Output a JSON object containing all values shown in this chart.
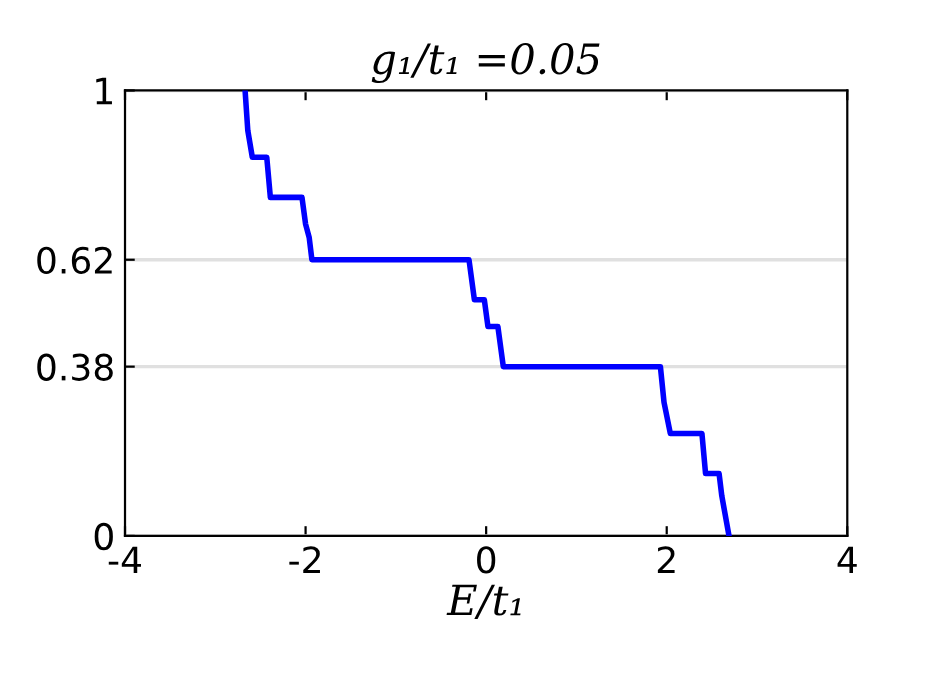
{
  "chart_data": {
    "type": "line",
    "title": "g₁/t₁ =0.05",
    "xlabel": "E/t₁",
    "series": [
      {
        "color": "#0000ff",
        "x": [
          -2.67,
          -2.64,
          -2.59,
          -2.43,
          -2.39,
          -2.04,
          -2.0,
          -1.96,
          -1.93,
          -0.19,
          -0.13,
          -0.02,
          0.02,
          0.13,
          0.19,
          1.93,
          1.97,
          2.04,
          2.39,
          2.43,
          2.58,
          2.61,
          2.69
        ],
        "values": [
          1,
          0.91,
          0.85,
          0.85,
          0.76,
          0.76,
          0.7,
          0.67,
          0.62,
          0.62,
          0.53,
          0.53,
          0.47,
          0.47,
          0.38,
          0.38,
          0.3,
          0.23,
          0.23,
          0.14,
          0.14,
          0.09,
          0
        ]
      }
    ],
    "xlim": [
      -4,
      4
    ],
    "ylim": [
      0,
      1
    ],
    "xticks": [
      {
        "value": -4,
        "label": "-4"
      },
      {
        "value": -2,
        "label": "-2"
      },
      0,
      2,
      4
    ],
    "yticks": [
      0,
      0.38,
      0.62,
      1
    ],
    "grid": "y",
    "line_style": "solid",
    "marker": "none"
  }
}
